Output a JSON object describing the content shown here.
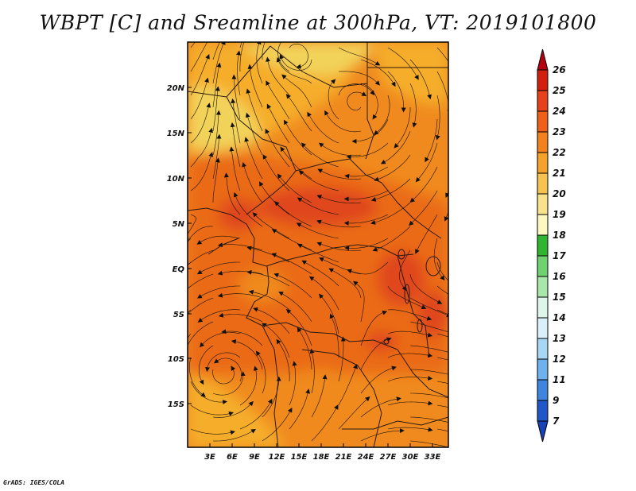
{
  "title": "WBPT [C] and Sreamline at 300hPa, VT: 2019101800",
  "credit": "GrADS: IGES/COLA",
  "map": {
    "lat_labels": [
      "20N",
      "15N",
      "10N",
      "5N",
      "EQ",
      "5S",
      "10S",
      "15S"
    ],
    "lon_labels": [
      "3E",
      "6E",
      "9E",
      "12E",
      "15E",
      "18E",
      "21E",
      "24E",
      "27E",
      "30E",
      "33E"
    ],
    "field_colors": {
      "yellow": "#f2d35a",
      "light_orange": "#f5ad2c",
      "orange": "#f08a1e",
      "dark_orange": "#ea6a16",
      "red_orange": "#e0461a"
    }
  },
  "colorbar": {
    "labels": [
      "26",
      "25",
      "24",
      "23",
      "22",
      "21",
      "20",
      "19",
      "18",
      "17",
      "16",
      "15",
      "14",
      "13",
      "12",
      "11",
      "9",
      "7"
    ],
    "colors": [
      "#b50012",
      "#d3200e",
      "#e8401a",
      "#f06018",
      "#f3821e",
      "#f5a22a",
      "#f7c350",
      "#fae28a",
      "#fdf7c0",
      "#2fb52f",
      "#6fd16f",
      "#a9e6a9",
      "#def5ea",
      "#d9f0fb",
      "#a8d6f5",
      "#6fb1ee",
      "#3f85e0",
      "#1f56c9",
      "#1742b8"
    ]
  }
}
